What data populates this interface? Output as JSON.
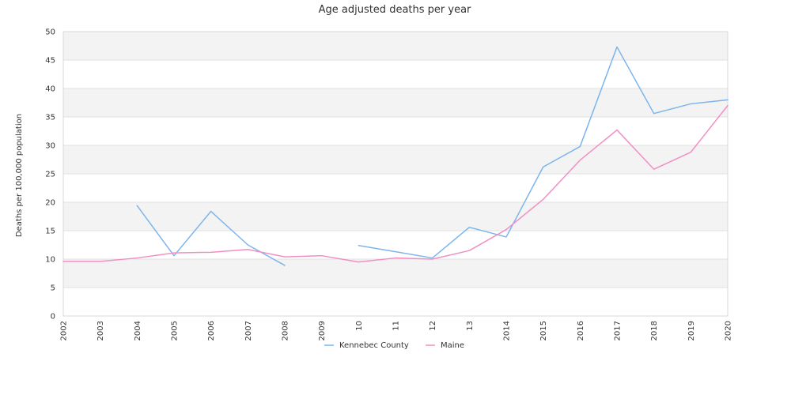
{
  "chart_data": {
    "type": "line",
    "title": "Age adjusted deaths per year",
    "xlabel": "",
    "ylabel": "Deaths per 100,000 population",
    "ylim": [
      0,
      50
    ],
    "yticks": [
      0,
      5,
      10,
      15,
      20,
      25,
      30,
      35,
      40,
      45,
      50
    ],
    "grid": "alternating horizontal bands",
    "legend_position": "bottom",
    "categories": [
      "2002",
      "2003",
      "2004",
      "2005",
      "2006",
      "2007",
      "2008",
      "2009",
      "2010",
      "2011",
      "2012",
      "2013",
      "2014",
      "2015",
      "2016",
      "2017",
      "2018",
      "2019",
      "2020"
    ],
    "tick_labels": [
      "2002",
      "2003",
      "2004",
      "2005",
      "2006",
      "2007",
      "2008",
      "2009",
      "10",
      "11",
      "12",
      "13",
      "2014",
      "2015",
      "2016",
      "2017",
      "2018",
      "2019",
      "2020"
    ],
    "series": [
      {
        "name": "Kennebec County",
        "color": "#7cb5ec",
        "values": [
          null,
          null,
          19.4,
          10.6,
          18.4,
          12.5,
          8.9,
          null,
          12.4,
          11.3,
          10.2,
          15.6,
          13.9,
          26.2,
          29.8,
          47.3,
          35.6,
          37.3,
          38.0
        ]
      },
      {
        "name": "Maine",
        "color": "#f28fc2",
        "values": [
          9.6,
          9.6,
          10.2,
          11.1,
          11.2,
          11.7,
          10.4,
          10.6,
          9.5,
          10.2,
          10.0,
          11.5,
          15.2,
          20.5,
          27.4,
          32.7,
          25.8,
          28.8,
          37.0
        ]
      }
    ]
  }
}
